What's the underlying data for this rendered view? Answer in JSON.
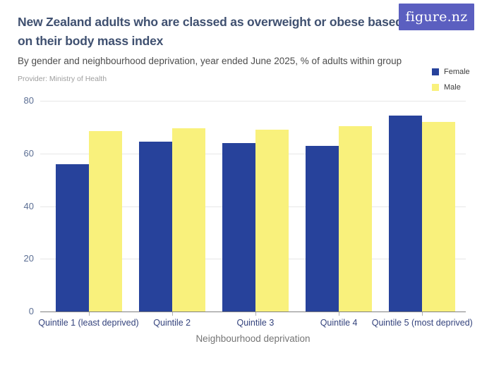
{
  "header": {
    "title_line1": "New Zealand adults who are classed as overweight or obese based",
    "title_line2": "on their body mass index",
    "subtitle": "By gender and neighbourhood deprivation, year ended June 2025, % of adults within group",
    "provider": "Provider: Ministry of Health",
    "logo_text": "figure.nz"
  },
  "colors": {
    "female": "#27429b",
    "male": "#f9f17c",
    "logo_bg": "#5b5fc0",
    "title_text": "#3f5070"
  },
  "chart_data": {
    "type": "bar",
    "title": "New Zealand adults who are classed as overweight or obese based on their body mass index",
    "subtitle": "By gender and neighbourhood deprivation, year ended June 2025, % of adults within group",
    "xlabel": "Neighbourhood deprivation",
    "ylabel": "",
    "ylim": [
      0,
      80
    ],
    "yticks": [
      0,
      20,
      40,
      60,
      80
    ],
    "grid": true,
    "legend_position": "top-right",
    "categories": [
      "Quintile 1 (least deprived)",
      "Quintile 2",
      "Quintile 3",
      "Quintile 4",
      "Quintile 5 (most deprived)"
    ],
    "series": [
      {
        "name": "Female",
        "color": "#27429b",
        "values": [
          56,
          64.5,
          64,
          63,
          74.5
        ]
      },
      {
        "name": "Male",
        "color": "#f9f17c",
        "values": [
          68.5,
          69.5,
          69,
          70.5,
          72
        ]
      }
    ]
  }
}
